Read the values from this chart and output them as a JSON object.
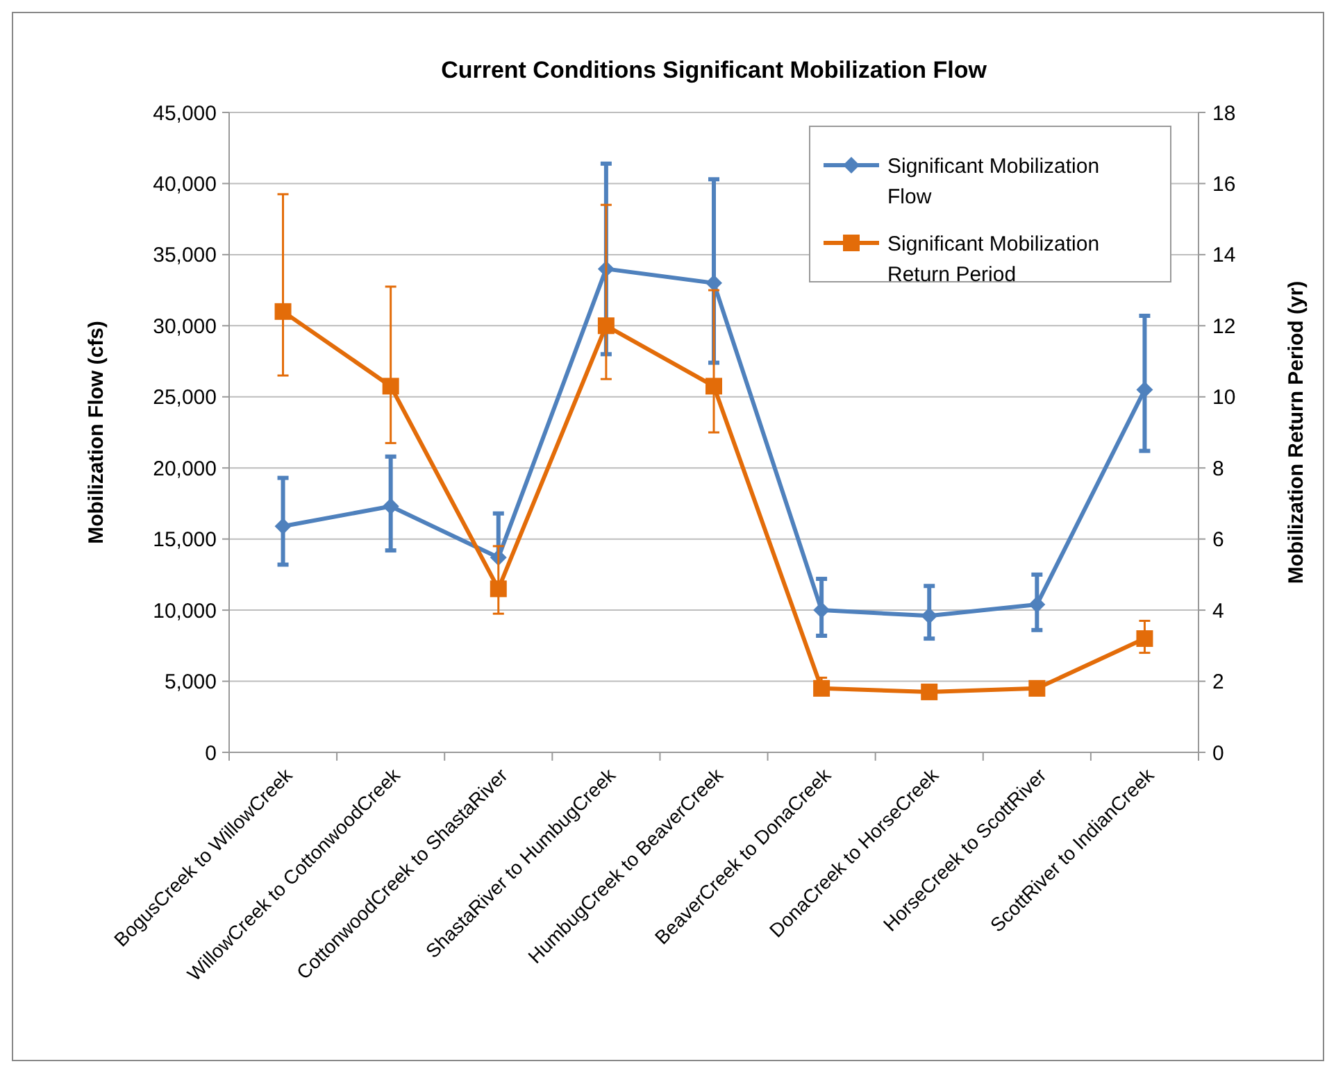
{
  "chart_data": {
    "type": "line",
    "title": "Current Conditions Significant Mobilization Flow",
    "ylabel": "Mobilization Flow (cfs)",
    "y2label": "Mobilization Return Period (yr)",
    "categories": [
      "BogusCreek to WillowCreek",
      "WillowCreek to CottonwoodCreek",
      "CottonwoodCreek to ShastaRiver",
      "ShastaRiver to HumbugCreek",
      "HumbugCreek to BeaverCreek",
      "BeaverCreek to DonaCreek",
      "DonaCreek to HorseCreek",
      "HorseCreek to ScottRiver",
      "ScottRiver to IndianCreek"
    ],
    "series": [
      {
        "name": "Significant Mobilization Flow",
        "color": "#4f81bd",
        "marker": "diamond",
        "values": [
          15900,
          17300,
          13700,
          34000,
          33000,
          10000,
          9600,
          10400,
          25500
        ],
        "errors": [
          [
            13200,
            19300
          ],
          [
            14200,
            20800
          ],
          [
            13700,
            16800
          ],
          [
            28000,
            41400
          ],
          [
            27400,
            40300
          ],
          [
            8200,
            12200
          ],
          [
            8000,
            11700
          ],
          [
            8600,
            12500
          ],
          [
            21200,
            30700
          ]
        ]
      },
      {
        "name": "Significant Mobilization Return Period",
        "color": "#e36c09",
        "marker": "square",
        "axis": "y2",
        "values": [
          12.4,
          10.3,
          4.6,
          12.0,
          10.3,
          1.8,
          1.7,
          1.8,
          3.2
        ],
        "errors": [
          [
            10.6,
            15.7
          ],
          [
            8.7,
            13.1
          ],
          [
            3.9,
            5.8
          ],
          [
            10.5,
            15.4
          ],
          [
            9.0,
            13.0
          ],
          [
            1.8,
            2.1
          ],
          null,
          null,
          [
            2.8,
            3.7
          ]
        ]
      }
    ],
    "ylim": [
      0,
      45000
    ],
    "yticks": [
      {
        "value": 0,
        "label": "0"
      },
      {
        "value": 5000,
        "label": "5,000"
      },
      {
        "value": 10000,
        "label": "10,000"
      },
      {
        "value": 15000,
        "label": "15,000"
      },
      {
        "value": 20000,
        "label": "20,000"
      },
      {
        "value": 25000,
        "label": "25,000"
      },
      {
        "value": 30000,
        "label": "30,000"
      },
      {
        "value": 35000,
        "label": "35,000"
      },
      {
        "value": 40000,
        "label": "40,000"
      },
      {
        "value": 45000,
        "label": "45,000"
      }
    ],
    "y2lim": [
      0,
      18
    ],
    "y2ticks": [
      0,
      2,
      4,
      6,
      8,
      10,
      12,
      14,
      16,
      18
    ],
    "grid": "y",
    "legend": "top right",
    "line_style": "solid"
  }
}
